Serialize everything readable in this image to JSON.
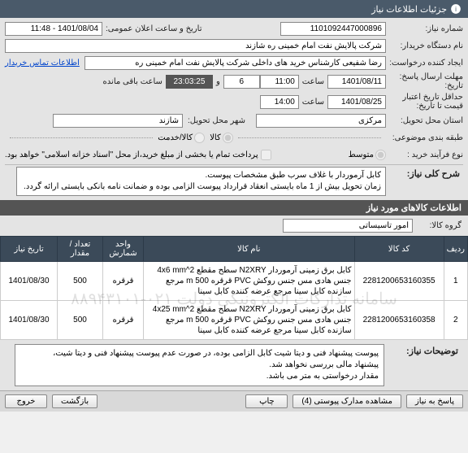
{
  "title": "جزئیات اطلاعات نیاز",
  "f": {
    "req_no_lbl": "شماره نیاز:",
    "req_no": "1101092447000896",
    "announce_lbl": "تاریخ و ساعت اعلان عمومی:",
    "announce_val": "1401/08/04 - 11:48",
    "buyer_lbl": "نام دستگاه خریدار:",
    "buyer_val": "شرکت پالایش نفت امام خمینی ره شازند",
    "creator_lbl": "ایجاد کننده درخواست:",
    "creator_val": "رضا شفیعی کارشناس خرید های داخلی شرکت پالایش نفت امام خمینی ره",
    "contact_link": "اطلاعات تماس خریدار",
    "resp_deadline_lbl": "مهلت ارسال پاسخ:",
    "date_lbl": "تاریخ:",
    "resp_date": "1401/08/11",
    "time_lbl": "ساعت",
    "resp_time": "11:00",
    "days_left": "6",
    "dur": "23:03:25",
    "remain_lbl": "ساعت باقی مانده",
    "credit_lbl": "حداقل تاریخ اعتبار",
    "credit_lbl2": "قیمت تا تاریخ:",
    "credit_date": "1401/08/25",
    "credit_time": "14:00",
    "province_lbl": "استان محل تحویل:",
    "province": "مرکزی",
    "city_lbl": "شهر محل تحویل:",
    "city": "شازند",
    "topic_lbl": "طبقه بندی موضوعی:",
    "opt_goods": "کالا",
    "opt_service": "کالا/خدمت",
    "process_lbl": "نوع فرآیند خرید :",
    "opt_mid": "متوسط",
    "pay_note": "پرداخت تمام یا بخشی از مبلغ خرید،از محل \"اسناد خزانه اسلامی\" خواهد بود.",
    "desc_lbl": "شرح کلی نیاز:",
    "desc_l1": "کابل آرموردار با غلاف سرب طبق مشخصات پیوست.",
    "desc_l2": "زمان تحویل بیش از 1 ماه بایستی انعقاد قرارداد پیوست الزامی بوده و ضمانت نامه بانکی بایستی ارائه گردد."
  },
  "items_section": "اطلاعات کالاهای مورد نیاز",
  "group_lbl": "گروه کالا:",
  "group_val": "امور تاسیساتی",
  "cols": {
    "idx": "ردیف",
    "code": "کد کالا",
    "name": "نام کالا",
    "unit": "واحد شمارش",
    "qty": "تعداد / مقدار",
    "date": "تاریخ نیاز"
  },
  "rows": [
    {
      "idx": "1",
      "code": "2281200653160355",
      "name": "کابل برق زمینی آرموردار N2XRY سطح مقطع 4x6 mm^2 جنس هادی مس جنس روکش PVC قرقره m 500 مرجع سازنده کابل سینا مرجع عرضه کننده کابل سینا",
      "unit": "قرقره",
      "qty": "500",
      "date": "1401/08/30"
    },
    {
      "idx": "2",
      "code": "2281200653160358",
      "name": "کابل برق زمینی آرموردار N2XRY سطح مقطع 4x25 mm^2 جنس هادی مس جنس روکش PVC قرقره m 500 مرجع سازنده کابل سینا مرجع عرضه کننده کابل سینا",
      "unit": "قرقره",
      "qty": "500",
      "date": "1401/08/30"
    }
  ],
  "notes_lbl": "توضیحات نیاز:",
  "notes_l1": "پیوست پیشنهاد فنی و دیتا شیت کابل الزامی بوده، در صورت عدم پیوست پیشنهاد فنی و دیتا شیت،",
  "notes_l2": "پیشنهاد مالی بررسی نخواهد شد.",
  "notes_l3": "مقدار درخواستی به متر می باشد.",
  "btns": {
    "answer": "پاسخ به نیاز",
    "attach": "مشاهده مدارک پیوستی (4)",
    "print": "چاپ",
    "back": "بازگشت",
    "exit": "خروج"
  },
  "watermark": "سامانه تدارکات الکترونیکی دولت\n۰۲۱-۸۸۹۴۳۱۰۱"
}
